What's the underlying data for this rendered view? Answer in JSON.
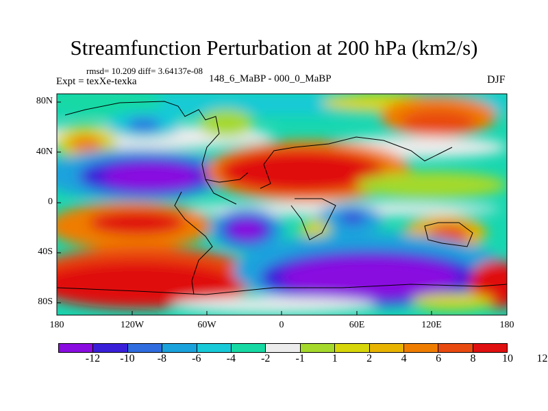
{
  "title": "Streamfunction Perturbation at 200 hPa (km2/s)",
  "stats": "rmsd= 10.209 diff= 3.64137e-08",
  "experiment": "Expt = texXe-texka",
  "case": "148_6_MaBP - 000_0_MaBP",
  "season": "DJF",
  "lat_labels": [
    "80N",
    "40N",
    "0",
    "40S",
    "80S"
  ],
  "lon_labels": [
    "180",
    "120W",
    "60W",
    "0",
    "60E",
    "120E",
    "180"
  ],
  "colorbar": {
    "colors": [
      "#8a0ce0",
      "#3a1fd9",
      "#2f6ce0",
      "#1aa2dd",
      "#18c9d8",
      "#16d9a4",
      "#ececec",
      "#a5d92b",
      "#d6d60b",
      "#e8b400",
      "#ef7d00",
      "#e94a10",
      "#e01010"
    ],
    "labels": [
      "-12",
      "-10",
      "-8",
      "-6",
      "-4",
      "-2",
      "-1",
      "1",
      "2",
      "4",
      "6",
      "8",
      "10",
      "12"
    ]
  }
}
